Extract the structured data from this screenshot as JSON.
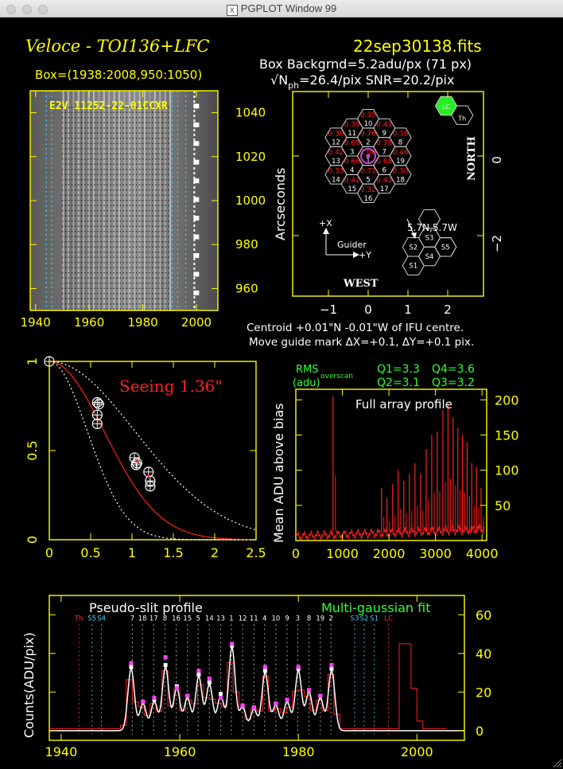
{
  "window": {
    "title": "PGPLOT Window 99",
    "x_glyph": "X"
  },
  "header": {
    "title_left": "Veloce - TOI136+LFC",
    "filename": "22sep30138.fits",
    "box_range": "Box=(1938:2008,950:1050)",
    "bkg": "Box Backgrnd=5.2adu/px (71 px)",
    "nph_symbol": "√N",
    "nph_sub": "ph",
    "nph_rest": "=26.4/pix SNR=20.2/pix"
  },
  "panel_image": {
    "label": "E2V 11252-22-01CCXR",
    "x_ticks": [
      "1940",
      "1960",
      "1980",
      "2000"
    ],
    "y_ticks": [
      "960",
      "980",
      "1000",
      "1020",
      "1040"
    ],
    "xlim": [
      1938,
      2008
    ],
    "ylim": [
      950,
      1050
    ]
  },
  "panel_ifu": {
    "ylabel": "Arcseconds",
    "north": "NORTH",
    "west": "WEST",
    "lc": "LC",
    "th": "Th",
    "offset": "5.7N,5.7W",
    "guider": "Guider",
    "plus_x": "+X",
    "plus_y": "+Y",
    "x_ticks": [
      "−1",
      "0",
      "1",
      "2"
    ],
    "y_ticks": [
      "0",
      "−2"
    ],
    "sky": [
      "S1",
      "S2",
      "S3",
      "S4",
      "S5"
    ],
    "fibres": [
      {
        "n": "10",
        "v": "0.35"
      },
      {
        "n": "11",
        "v": "0.39"
      },
      {
        "n": "9",
        "v": "0.43"
      },
      {
        "n": "12",
        "v": "0.30"
      },
      {
        "n": "2",
        "v": "0.76"
      },
      {
        "n": "8",
        "v": "0.38"
      },
      {
        "n": "3",
        "v": "0.65"
      },
      {
        "n": "7",
        "v": "0.78"
      },
      {
        "n": "13",
        "v": "0.42"
      },
      {
        "n": "1",
        "v": "1.00"
      },
      {
        "n": "19",
        "v": "0.46"
      },
      {
        "n": "4",
        "v": "0.66"
      },
      {
        "n": "6",
        "v": "0.68"
      },
      {
        "n": "14",
        "v": "0.33"
      },
      {
        "n": "5",
        "v": "0.71"
      },
      {
        "n": "18",
        "v": "0.30"
      },
      {
        "n": "15",
        "v": "0.42"
      },
      {
        "n": "17",
        "v": "0.43"
      },
      {
        "n": "16",
        "v": "0.32"
      }
    ]
  },
  "centroid": {
    "line1": "Centroid +0.01\"N -0.01\"W of IFU centre.",
    "line2": "Move guide mark ΔX=+0.1, ΔY=+0.1 pix."
  },
  "chart_data": [
    {
      "type": "scatter",
      "title": "Seeing 1.36\"",
      "xlim": [
        0,
        2.5
      ],
      "ylim": [
        0,
        1
      ],
      "x_ticks": [
        "0",
        "0.5",
        "1",
        "1.5",
        "2",
        "2.5"
      ],
      "y_ticks": [
        "0",
        "0.5",
        "1"
      ],
      "series": [
        {
          "x": [
            0,
            0.58,
            0.58,
            0.58,
            0.6,
            1.03,
            1.05,
            1.06,
            1.2,
            1.22,
            1.22
          ],
          "y": [
            1,
            0.77,
            0.7,
            0.65,
            0.76,
            0.46,
            0.42,
            0.43,
            0.38,
            0.33,
            0.3
          ]
        }
      ]
    },
    {
      "type": "line",
      "title": "Full array profile",
      "ylabel": "Mean ADU above bias",
      "rms_label": "RMS",
      "rms_sub": "overscan",
      "rms_unit": "(adu)",
      "q1": "Q1=3.3",
      "q2": "Q2=3.1",
      "q3": "Q3=3.2",
      "q4": "Q4=3.6",
      "xlim": [
        0,
        4100
      ],
      "ylim": [
        0,
        215
      ],
      "x_ticks": [
        "0",
        "1000",
        "2000",
        "3000",
        "4000"
      ],
      "y_ticks": [
        "50",
        "100",
        "150",
        "200"
      ],
      "peaks": [
        {
          "x": 800,
          "y": 205
        },
        {
          "x": 1840,
          "y": 75
        },
        {
          "x": 1960,
          "y": 60
        },
        {
          "x": 2080,
          "y": 80
        },
        {
          "x": 2200,
          "y": 100
        },
        {
          "x": 2320,
          "y": 85
        },
        {
          "x": 2440,
          "y": 95
        },
        {
          "x": 2560,
          "y": 110
        },
        {
          "x": 2680,
          "y": 95
        },
        {
          "x": 2800,
          "y": 130
        },
        {
          "x": 2920,
          "y": 150
        },
        {
          "x": 3040,
          "y": 155
        },
        {
          "x": 3160,
          "y": 185
        },
        {
          "x": 3270,
          "y": 195
        },
        {
          "x": 3380,
          "y": 175
        },
        {
          "x": 3480,
          "y": 160
        },
        {
          "x": 3580,
          "y": 150
        },
        {
          "x": 3680,
          "y": 140
        },
        {
          "x": 3780,
          "y": 110
        },
        {
          "x": 3880,
          "y": 105
        },
        {
          "x": 3980,
          "y": 75
        }
      ]
    },
    {
      "type": "line",
      "title": "Pseudo-slit profile",
      "fit_label": "Multi-gaussian fit",
      "ylabel": "Counts(ADU/pix)",
      "xlim": [
        1938,
        2008
      ],
      "ylim": [
        -5,
        70
      ],
      "x_ticks": [
        "1940",
        "1960",
        "1980",
        "2000"
      ],
      "y_ticks": [
        "0",
        "20",
        "40",
        "60"
      ],
      "fibre_labels": [
        {
          "t": "Th",
          "x": 1943,
          "c": "#ff3030"
        },
        {
          "t": "S5",
          "x": 1945.2,
          "c": "#40d0ff"
        },
        {
          "t": "S4",
          "x": 1946.8,
          "c": "#40d0ff"
        },
        {
          "t": "7",
          "x": 1952,
          "c": "#ffffff"
        },
        {
          "t": "18",
          "x": 1953.7,
          "c": "#ffffff"
        },
        {
          "t": "17",
          "x": 1955.6,
          "c": "#ffffff"
        },
        {
          "t": "8",
          "x": 1957.5,
          "c": "#ffffff"
        },
        {
          "t": "16",
          "x": 1959.4,
          "c": "#ffffff"
        },
        {
          "t": "15",
          "x": 1961.3,
          "c": "#ffffff"
        },
        {
          "t": "5",
          "x": 1963.1,
          "c": "#ffffff"
        },
        {
          "t": "14",
          "x": 1965,
          "c": "#ffffff"
        },
        {
          "t": "13",
          "x": 1966.9,
          "c": "#ffffff"
        },
        {
          "t": "1",
          "x": 1968.7,
          "c": "#ffffff"
        },
        {
          "t": "12",
          "x": 1970.6,
          "c": "#ffffff"
        },
        {
          "t": "11",
          "x": 1972.5,
          "c": "#ffffff"
        },
        {
          "t": "4",
          "x": 1974.3,
          "c": "#ffffff"
        },
        {
          "t": "10",
          "x": 1976.2,
          "c": "#ffffff"
        },
        {
          "t": "9",
          "x": 1978.1,
          "c": "#ffffff"
        },
        {
          "t": "3",
          "x": 1979.9,
          "c": "#ffffff"
        },
        {
          "t": "8",
          "x": 1981.8,
          "c": "#ffffff"
        },
        {
          "t": "19",
          "x": 1983.7,
          "c": "#ffffff"
        },
        {
          "t": "2",
          "x": 1985.5,
          "c": "#ffffff"
        },
        {
          "t": "S3",
          "x": 1989.5,
          "c": "#40d0ff"
        },
        {
          "t": "S2",
          "x": 1991.1,
          "c": "#40d0ff"
        },
        {
          "t": "S1",
          "x": 1992.8,
          "c": "#40d0ff"
        },
        {
          "t": "LC",
          "x": 1995.2,
          "c": "#ff3030"
        }
      ],
      "gauss_centres": [
        1951.8,
        1953.8,
        1955.7,
        1957.6,
        1959.5,
        1961.3,
        1963.2,
        1965.0,
        1966.9,
        1968.8,
        1970.6,
        1972.5,
        1974.4,
        1976.2,
        1978.1,
        1980.0,
        1981.8,
        1983.7,
        1985.6
      ],
      "gauss_amps": [
        32,
        14,
        15,
        33,
        22,
        17,
        28,
        24,
        18,
        43,
        12,
        11,
        30,
        13,
        15,
        31,
        20,
        17,
        31
      ],
      "markers_y": [
        35,
        15,
        17,
        38,
        22,
        18,
        31,
        27,
        17,
        45,
        13,
        12,
        33,
        14,
        16,
        33,
        21,
        18,
        34
      ]
    }
  ]
}
